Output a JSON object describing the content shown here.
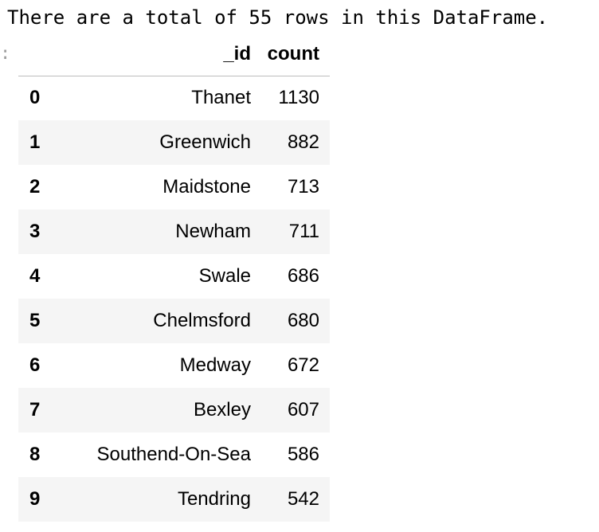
{
  "output_text": "There are a total of 55 rows in this DataFrame.",
  "out_prompt": ":",
  "table": {
    "columns": [
      "_id",
      "count"
    ],
    "rows": [
      {
        "index": "0",
        "id": "Thanet",
        "count": "1130"
      },
      {
        "index": "1",
        "id": "Greenwich",
        "count": "882"
      },
      {
        "index": "2",
        "id": "Maidstone",
        "count": "713"
      },
      {
        "index": "3",
        "id": "Newham",
        "count": "711"
      },
      {
        "index": "4",
        "id": "Swale",
        "count": "686"
      },
      {
        "index": "5",
        "id": "Chelmsford",
        "count": "680"
      },
      {
        "index": "6",
        "id": "Medway",
        "count": "672"
      },
      {
        "index": "7",
        "id": "Bexley",
        "count": "607"
      },
      {
        "index": "8",
        "id": "Southend-On-Sea",
        "count": "586"
      },
      {
        "index": "9",
        "id": "Tendring",
        "count": "542"
      }
    ]
  }
}
